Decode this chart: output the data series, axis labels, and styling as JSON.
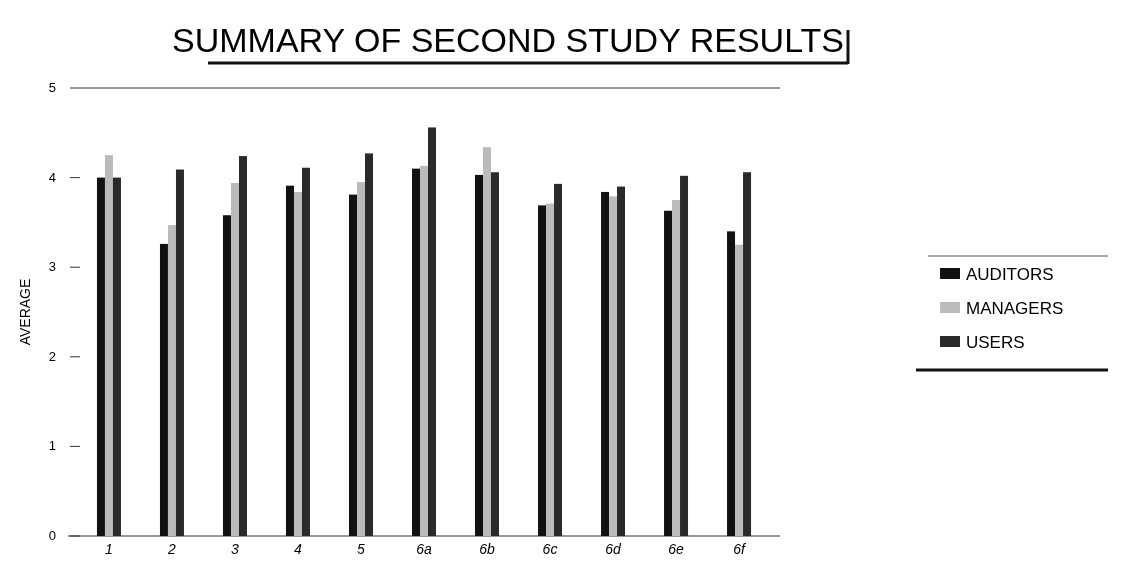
{
  "chart_data": {
    "type": "bar",
    "title": "SUMMARY OF SECOND STUDY RESULTS",
    "ylabel": "AVERAGE",
    "categories": [
      "1",
      "2",
      "3",
      "4",
      "5",
      "6a",
      "6b",
      "6c",
      "6d",
      "6e",
      "6f"
    ],
    "series": [
      {
        "name": "AUDITORS",
        "color": "#111111",
        "values": [
          4.0,
          3.26,
          3.58,
          3.91,
          3.81,
          4.1,
          4.03,
          3.69,
          3.84,
          3.63,
          3.4
        ]
      },
      {
        "name": "MANAGERS",
        "color": "#bbbbbb",
        "values": [
          4.25,
          3.47,
          3.94,
          3.84,
          3.95,
          4.13,
          4.34,
          3.71,
          3.79,
          3.75,
          3.25
        ]
      },
      {
        "name": "USERS",
        "color": "#2a2a2a",
        "values": [
          4.0,
          4.09,
          4.24,
          4.11,
          4.27,
          4.56,
          4.06,
          3.93,
          3.9,
          4.02,
          4.06
        ]
      }
    ],
    "ylim": [
      0,
      5
    ],
    "yticks": [
      0,
      1,
      2,
      3,
      4,
      5
    ],
    "legend": "right"
  }
}
